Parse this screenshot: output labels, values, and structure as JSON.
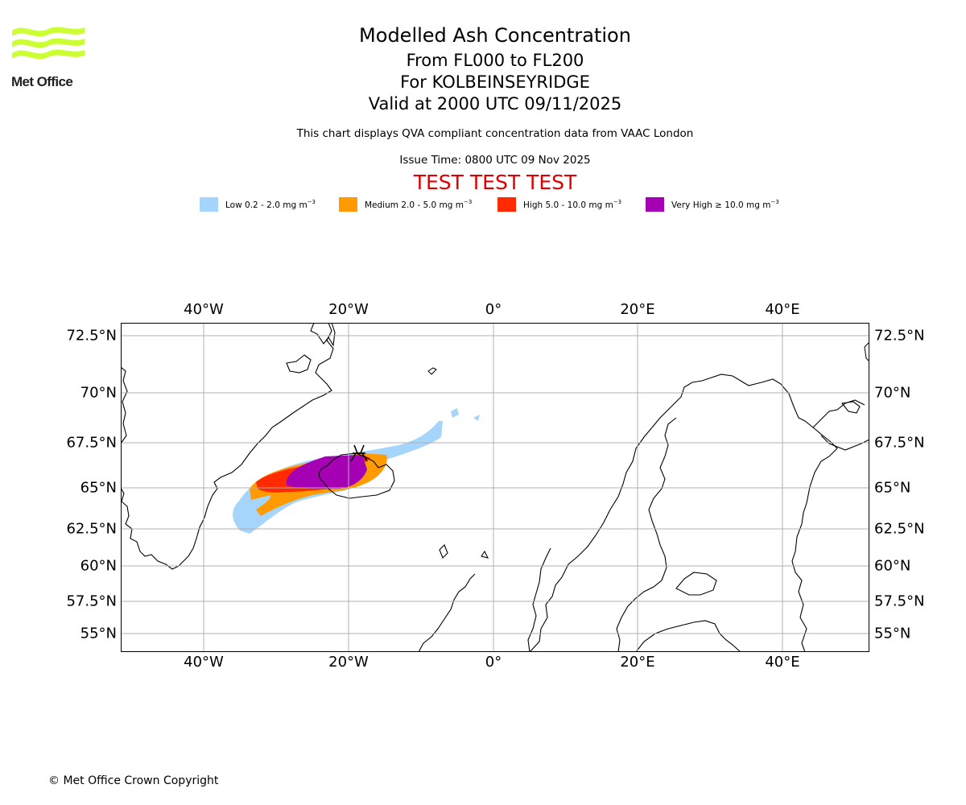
{
  "header": {
    "logo_text": "Met Office",
    "logo_color": "#ccff33",
    "title": "Modelled Ash Concentration",
    "subtitle_levels": "From FL000 to FL200",
    "subtitle_volcano": "For KOLBEINSEYRIDGE",
    "subtitle_valid": "Valid at 2000 UTC 09/11/2025",
    "description": "This chart displays QVA compliant concentration data from VAAC London",
    "issue_time": "Issue Time: 0800 UTC 09 Nov 2025",
    "test_banner": "TEST TEST TEST",
    "test_color": "#e00000"
  },
  "legend": [
    {
      "label": "Low 0.2 - 2.0 mg m",
      "color": "#a6d5fb"
    },
    {
      "label": "Medium 2.0 - 5.0 mg m",
      "color": "#ff9a00"
    },
    {
      "label": "High 5.0 - 10.0 mg m",
      "color": "#ff2a00"
    },
    {
      "label": "Very High  ≥  10.0 mg m",
      "color": "#a500b3"
    }
  ],
  "legend_unit_exponent": "−3",
  "map": {
    "lon_range": [
      -51.5,
      52
    ],
    "lat_range": [
      53.6,
      73.2
    ],
    "lon_ticks": [
      "40°W",
      "20°W",
      "0°",
      "20°E",
      "40°E"
    ],
    "lat_ticks": [
      "72.5°N",
      "70°N",
      "67.5°N",
      "65°N",
      "62.5°N",
      "60°N",
      "57.5°N",
      "55°N"
    ],
    "volcano": {
      "name": "KOLBEINSEYRIDGE",
      "lon": -18.5,
      "lat": 66.8
    }
  },
  "footer": {
    "copyright": "© Met Office Crown Copyright"
  }
}
